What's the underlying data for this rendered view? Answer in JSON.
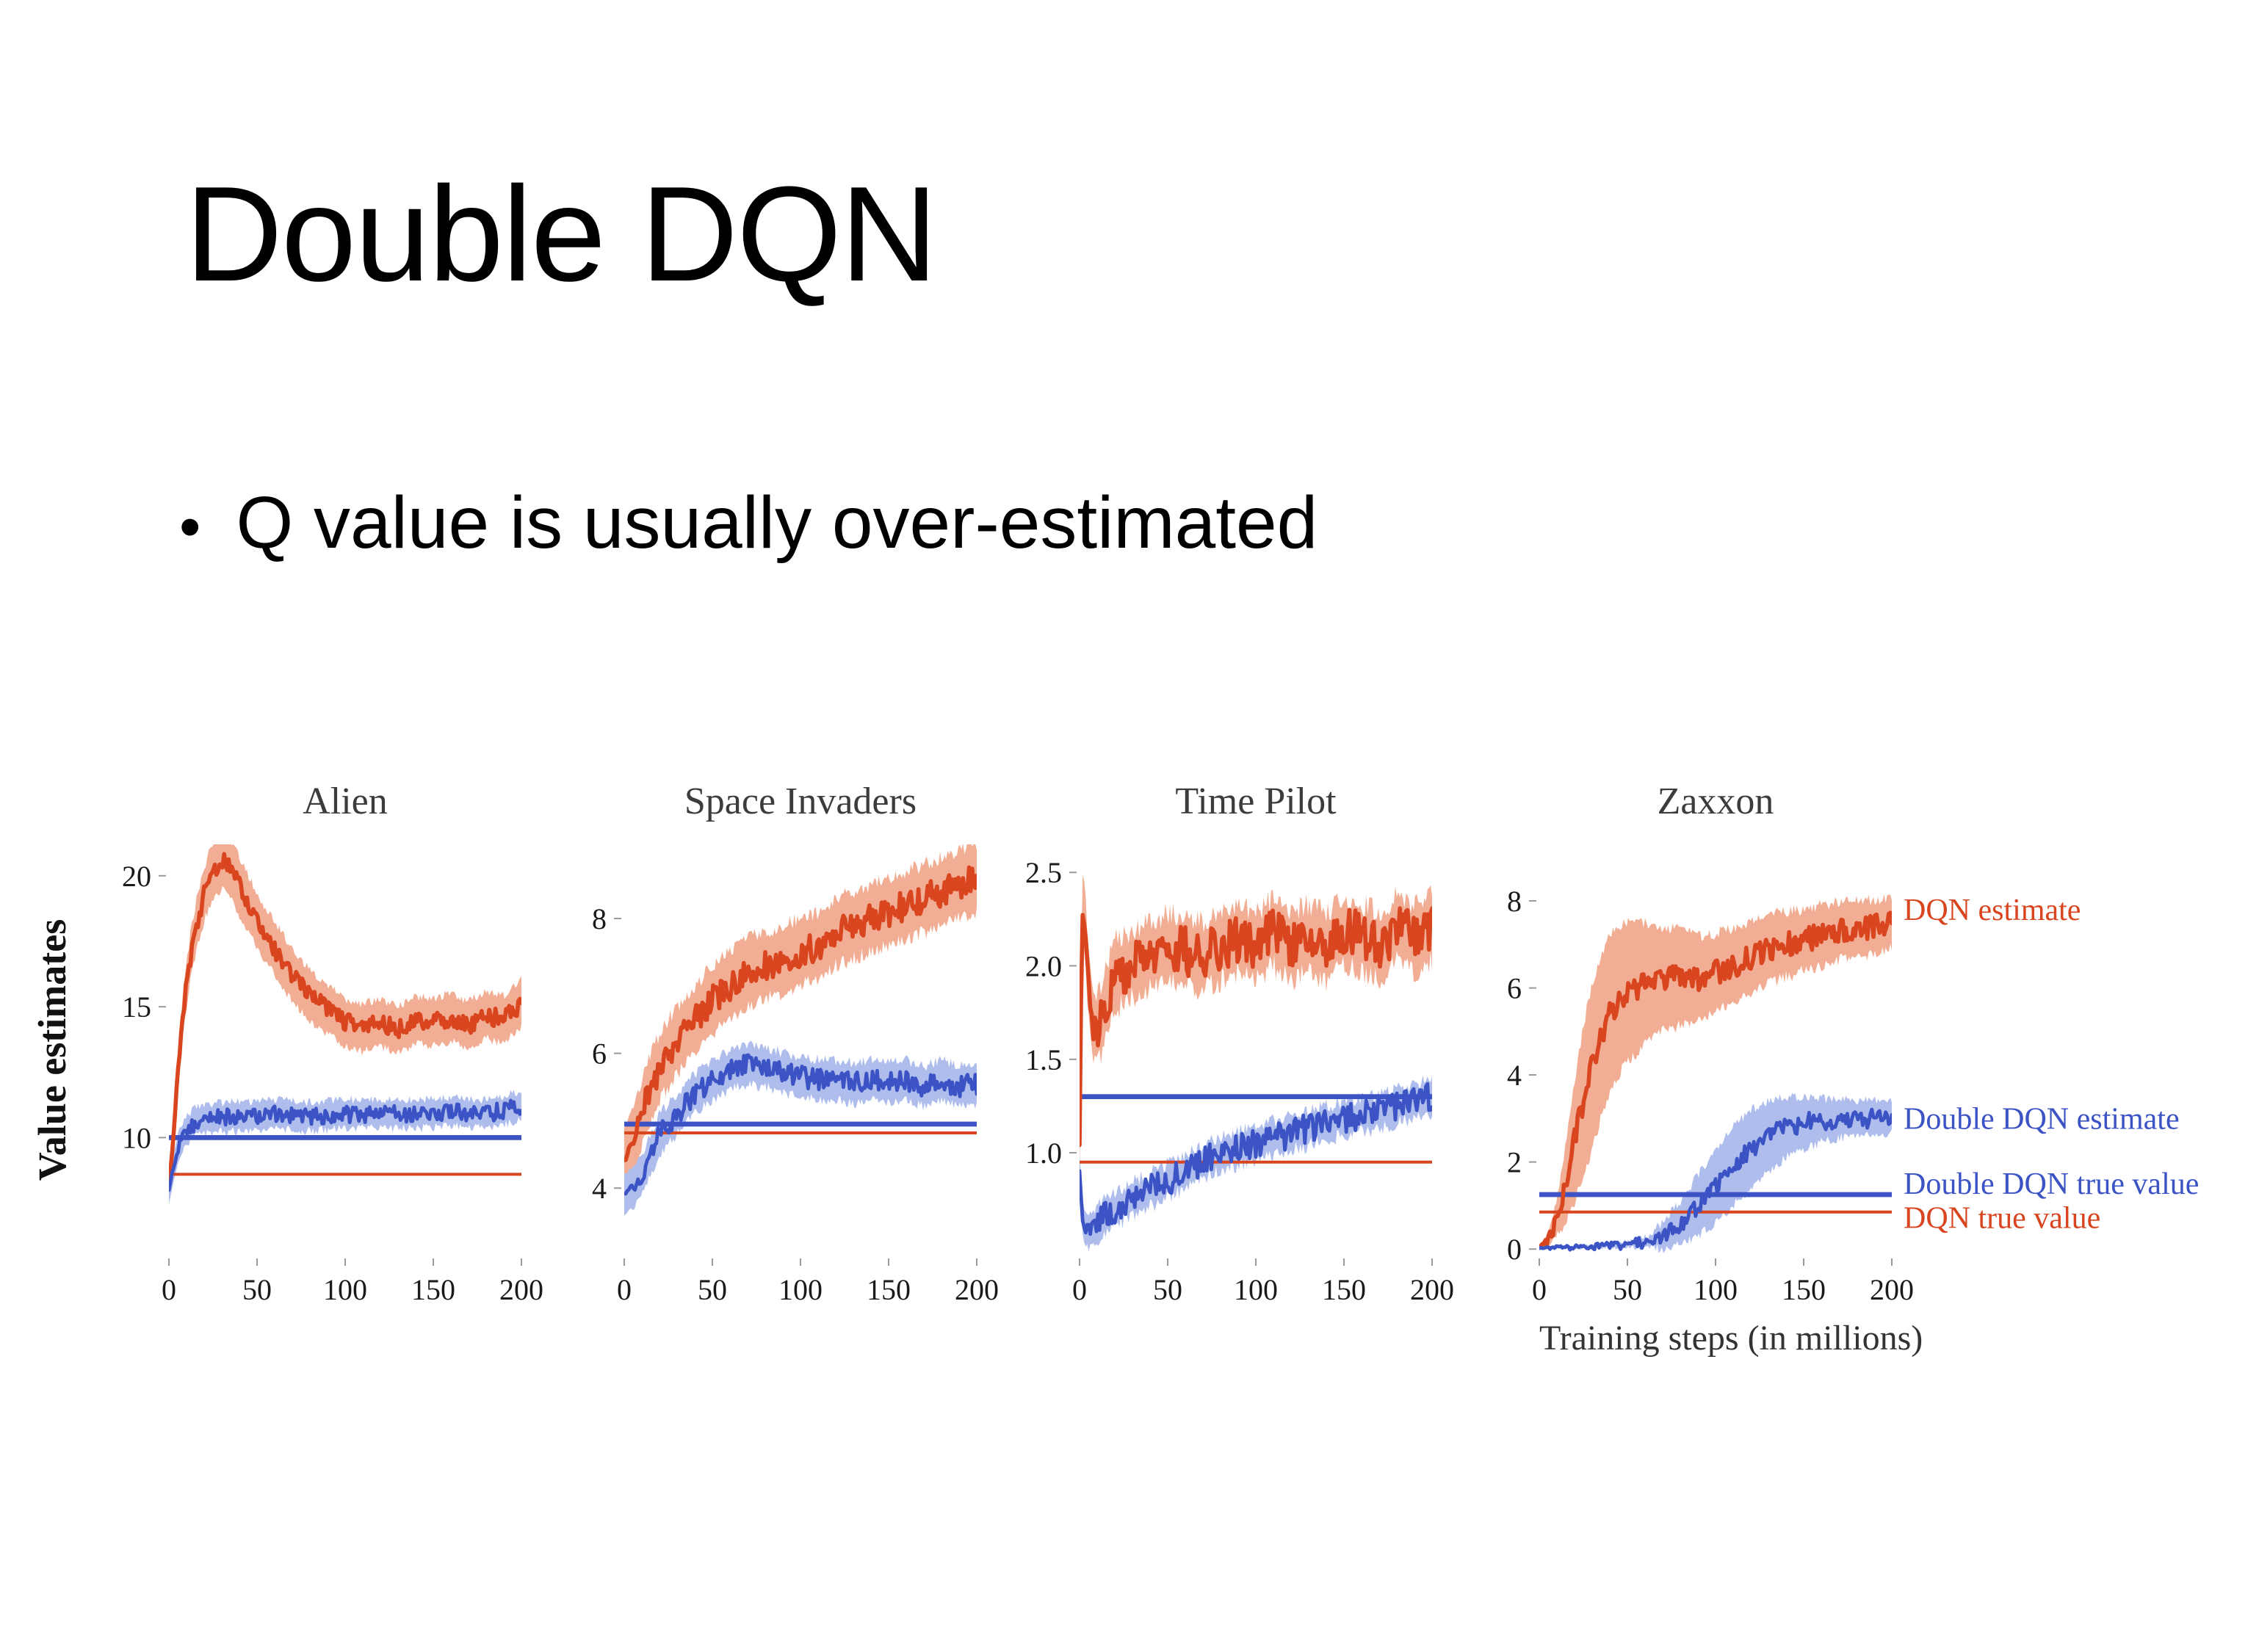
{
  "slide": {
    "title": "Double DQN",
    "bullets": [
      "Q value is usually over-estimated"
    ]
  },
  "chart_data": {
    "type": "line",
    "xlabel": "Training steps (in millions)",
    "ylabel": "Value estimates",
    "x_range": [
      0,
      200
    ],
    "legend_position": "right",
    "colors": {
      "dqn": "#d8451f",
      "dqn_band": "#f2ae94",
      "ddqn": "#3b53c4",
      "ddqn_band": "#aebdec"
    },
    "legend": [
      {
        "label": "DQN estimate",
        "color": "dqn",
        "panel": "zaxxon",
        "y": 7.8
      },
      {
        "label": "Double DQN estimate",
        "color": "ddqn",
        "panel": "zaxxon",
        "y": 3.0
      },
      {
        "label": "Double DQN true value",
        "color": "ddqn",
        "panel": "zaxxon",
        "y": 1.5
      },
      {
        "label": "DQN true value",
        "color": "dqn",
        "panel": "zaxxon",
        "y": 0.72
      }
    ],
    "charts": [
      {
        "key": "alien",
        "title": "Alien",
        "xlim": [
          0,
          200
        ],
        "ylim": [
          5.5,
          21.2
        ],
        "xticks": [
          0,
          50,
          100,
          150,
          200
        ],
        "yticks": [
          10,
          15,
          20
        ],
        "ytick_labels": [
          "10",
          "15",
          "20"
        ],
        "series": [
          {
            "name": "DQN estimate",
            "color": "dqn",
            "band_color": "dqn_band",
            "width": 2.8,
            "noise": 0.35,
            "x": [
              0,
              2,
              5,
              8,
              12,
              16,
              20,
              25,
              30,
              35,
              40,
              50,
              60,
              70,
              80,
              90,
              100,
              110,
              120,
              130,
              140,
              150,
              160,
              170,
              180,
              190,
              200
            ],
            "y": [
              8.2,
              9.5,
              12.5,
              14.8,
              16.8,
              18.2,
              19.3,
              20.2,
              20.6,
              20.3,
              19.6,
              18.3,
              17.2,
              16.2,
              15.4,
              14.9,
              14.4,
              14.2,
              14.4,
              14.1,
              14.5,
              14.4,
              14.6,
              14.3,
              14.7,
              14.5,
              15.1
            ],
            "band": [
              0.2,
              0.4,
              0.6,
              0.8,
              0.9,
              1.0,
              1.0,
              1.1,
              1.1,
              1.1,
              1.1,
              1.0,
              1.0,
              1.0,
              1.0,
              0.9,
              0.9,
              0.9,
              0.9,
              0.9,
              0.9,
              0.9,
              0.9,
              0.9,
              0.9,
              0.9,
              0.9
            ]
          },
          {
            "name": "Double DQN estimate",
            "color": "ddqn",
            "band_color": "ddqn_band",
            "width": 2.4,
            "noise": 0.32,
            "x": [
              0,
              3,
              6,
              10,
              15,
              20,
              30,
              40,
              60,
              80,
              100,
              120,
              140,
              160,
              180,
              200
            ],
            "y": [
              8.0,
              9.0,
              9.8,
              10.3,
              10.6,
              10.7,
              10.8,
              10.8,
              10.9,
              10.8,
              10.9,
              10.9,
              10.9,
              11.0,
              10.9,
              11.2
            ],
            "band": 0.55
          }
        ],
        "true_lines": [
          {
            "name": "DQN true value",
            "color": "dqn",
            "y": 8.6,
            "width": 2
          },
          {
            "name": "Double DQN true value",
            "color": "ddqn",
            "y": 10.0,
            "width": 3.4
          }
        ]
      },
      {
        "key": "space-invaders",
        "title": "Space Invaders",
        "xlim": [
          0,
          200
        ],
        "ylim": [
          3.0,
          9.1
        ],
        "xticks": [
          0,
          50,
          100,
          150,
          200
        ],
        "yticks": [
          4,
          6,
          8
        ],
        "ytick_labels": [
          "4",
          "6",
          "8"
        ],
        "series": [
          {
            "name": "DQN estimate",
            "color": "dqn",
            "band_color": "dqn_band",
            "width": 2.8,
            "noise": 0.22,
            "x": [
              0,
              5,
              10,
              15,
              20,
              30,
              40,
              50,
              60,
              70,
              80,
              90,
              100,
              110,
              120,
              130,
              140,
              150,
              160,
              170,
              180,
              190,
              200
            ],
            "y": [
              4.4,
              4.7,
              5.1,
              5.5,
              5.8,
              6.2,
              6.5,
              6.8,
              7.0,
              7.2,
              7.3,
              7.4,
              7.5,
              7.6,
              7.8,
              7.9,
              8.0,
              8.1,
              8.2,
              8.3,
              8.4,
              8.5,
              8.6
            ],
            "band": 0.5
          },
          {
            "name": "Double DQN estimate",
            "color": "ddqn",
            "band_color": "ddqn_band",
            "width": 2.4,
            "noise": 0.16,
            "x": [
              0,
              5,
              10,
              15,
              20,
              30,
              40,
              50,
              60,
              70,
              80,
              90,
              100,
              110,
              120,
              130,
              140,
              150,
              160,
              170,
              180,
              190,
              200
            ],
            "y": [
              3.9,
              4.0,
              4.2,
              4.5,
              4.8,
              5.1,
              5.4,
              5.6,
              5.75,
              5.85,
              5.8,
              5.7,
              5.65,
              5.6,
              5.6,
              5.55,
              5.6,
              5.55,
              5.6,
              5.5,
              5.6,
              5.5,
              5.55
            ],
            "band": 0.3
          }
        ],
        "true_lines": [
          {
            "name": "DQN true value",
            "color": "dqn",
            "y": 4.82,
            "width": 2
          },
          {
            "name": "Double DQN true value",
            "color": "ddqn",
            "y": 4.95,
            "width": 3.4
          }
        ]
      },
      {
        "key": "time-pilot",
        "title": "Time Pilot",
        "xlim": [
          0,
          200
        ],
        "ylim": [
          0.45,
          2.65
        ],
        "xticks": [
          0,
          50,
          100,
          150,
          200
        ],
        "yticks": [
          1.0,
          1.5,
          2.0,
          2.5
        ],
        "ytick_labels": [
          "1.0",
          "1.5",
          "2.0",
          "2.5"
        ],
        "series": [
          {
            "name": "DQN estimate",
            "color": "dqn",
            "band_color": "dqn_band",
            "width": 2.8,
            "noise": 0.13,
            "x": [
              0,
              1.5,
              3,
              5,
              8,
              12,
              16,
              20,
              30,
              40,
              50,
              60,
              70,
              80,
              90,
              100,
              110,
              120,
              130,
              140,
              150,
              160,
              170,
              180,
              190,
              200
            ],
            "y": [
              1.05,
              2.3,
              2.25,
              1.9,
              1.65,
              1.7,
              1.85,
              1.95,
              2.0,
              2.05,
              2.1,
              2.08,
              2.05,
              2.1,
              2.15,
              2.1,
              2.18,
              2.1,
              2.15,
              2.1,
              2.2,
              2.15,
              2.1,
              2.2,
              2.15,
              2.2
            ],
            "band": 0.18
          },
          {
            "name": "Double DQN estimate",
            "color": "ddqn",
            "band_color": "ddqn_band",
            "width": 2.4,
            "noise": 0.08,
            "x": [
              0,
              2,
              5,
              10,
              15,
              20,
              30,
              40,
              50,
              60,
              70,
              80,
              90,
              100,
              110,
              120,
              130,
              140,
              150,
              160,
              170,
              180,
              190,
              200
            ],
            "y": [
              0.9,
              0.62,
              0.58,
              0.62,
              0.66,
              0.7,
              0.75,
              0.8,
              0.85,
              0.9,
              0.95,
              1.0,
              1.02,
              1.05,
              1.08,
              1.1,
              1.13,
              1.16,
              1.18,
              1.2,
              1.22,
              1.25,
              1.27,
              1.3
            ],
            "band": 0.09
          }
        ],
        "true_lines": [
          {
            "name": "DQN true value",
            "color": "dqn",
            "y": 0.95,
            "width": 2
          },
          {
            "name": "Double DQN true value",
            "color": "ddqn",
            "y": 1.3,
            "width": 3.4
          }
        ]
      },
      {
        "key": "zaxxon",
        "title": "Zaxxon",
        "legend": true,
        "xlim": [
          0,
          200
        ],
        "ylim": [
          -0.15,
          9.3
        ],
        "xticks": [
          0,
          50,
          100,
          150,
          200
        ],
        "yticks": [
          0,
          2,
          4,
          6,
          8
        ],
        "ytick_labels": [
          "0",
          "2",
          "4",
          "6",
          "8"
        ],
        "series": [
          {
            "name": "DQN estimate",
            "color": "dqn",
            "band_color": "dqn_band",
            "width": 2.8,
            "noise": 0.28,
            "x": [
              0,
              5,
              10,
              15,
              20,
              25,
              30,
              35,
              40,
              45,
              50,
              60,
              70,
              80,
              90,
              100,
              110,
              120,
              130,
              140,
              150,
              160,
              170,
              180,
              190,
              200
            ],
            "y": [
              0.05,
              0.2,
              0.7,
              1.5,
              2.5,
              3.4,
              4.2,
              4.9,
              5.4,
              5.7,
              5.9,
              6.1,
              6.2,
              6.25,
              6.2,
              6.35,
              6.5,
              6.7,
              6.9,
              7.0,
              7.1,
              7.2,
              7.3,
              7.35,
              7.4,
              7.5
            ],
            "band": [
              0.05,
              0.15,
              0.4,
              0.9,
              1.4,
              1.7,
              1.9,
              1.9,
              1.8,
              1.7,
              1.6,
              1.4,
              1.2,
              1.1,
              1.0,
              0.9,
              0.85,
              0.8,
              0.8,
              0.75,
              0.7,
              0.7,
              0.65,
              0.65,
              0.6,
              0.6
            ]
          },
          {
            "name": "Double DQN estimate",
            "color": "ddqn",
            "band_color": "ddqn_band",
            "width": 2.4,
            "noise": 0.22,
            "x": [
              0,
              10,
              20,
              30,
              40,
              50,
              60,
              70,
              80,
              90,
              100,
              110,
              120,
              130,
              140,
              150,
              160,
              170,
              180,
              190,
              200
            ],
            "y": [
              0.02,
              0.03,
              0.05,
              0.06,
              0.08,
              0.1,
              0.15,
              0.3,
              0.6,
              1.0,
              1.45,
              1.9,
              2.3,
              2.6,
              2.8,
              2.9,
              2.95,
              3.0,
              3.0,
              3.0,
              3.05
            ],
            "band": [
              0.02,
              0.02,
              0.03,
              0.04,
              0.05,
              0.08,
              0.12,
              0.3,
              0.5,
              0.7,
              0.85,
              0.9,
              0.9,
              0.8,
              0.7,
              0.6,
              0.5,
              0.45,
              0.4,
              0.4,
              0.35
            ]
          }
        ],
        "true_lines": [
          {
            "name": "DQN true value",
            "color": "dqn",
            "y": 0.85,
            "width": 2
          },
          {
            "name": "Double DQN true value",
            "color": "ddqn",
            "y": 1.25,
            "width": 3.4
          }
        ]
      }
    ]
  }
}
